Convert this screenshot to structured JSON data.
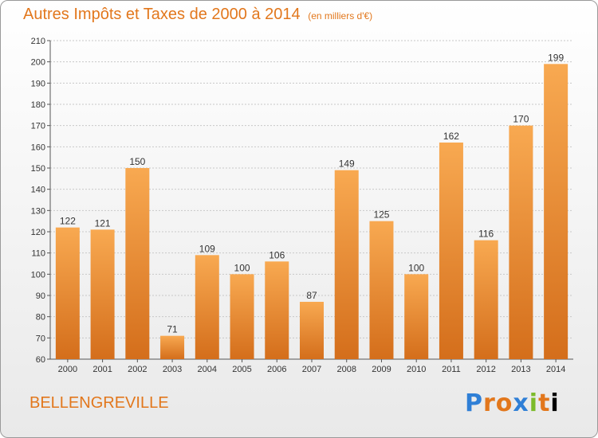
{
  "title": "Autres Impôts et Taxes de 2000 à 2014",
  "title_unit": "(en milliers d'€)",
  "commune": "BELLENGREVILLE",
  "logo_letters": [
    "P",
    "r",
    "o",
    "x",
    "i",
    "t",
    "i"
  ],
  "colors": {
    "bar_light": "#f6a24a",
    "bar_dark": "#d8721e",
    "text_accent": "#e2771c"
  },
  "chart_data": {
    "type": "bar",
    "title": "Autres Impôts et Taxes de 2000 à 2014",
    "ylabel": "",
    "xlabel": "",
    "ylim": [
      60,
      210
    ],
    "yticks": [
      60,
      70,
      80,
      90,
      100,
      110,
      120,
      130,
      140,
      150,
      160,
      170,
      180,
      190,
      200,
      210
    ],
    "grid": true,
    "categories": [
      "2000",
      "2001",
      "2002",
      "2003",
      "2004",
      "2005",
      "2006",
      "2007",
      "2008",
      "2009",
      "2010",
      "2011",
      "2012",
      "2013",
      "2014"
    ],
    "values": [
      122,
      121,
      150,
      71,
      109,
      100,
      106,
      87,
      149,
      125,
      100,
      162,
      116,
      170,
      199
    ]
  }
}
